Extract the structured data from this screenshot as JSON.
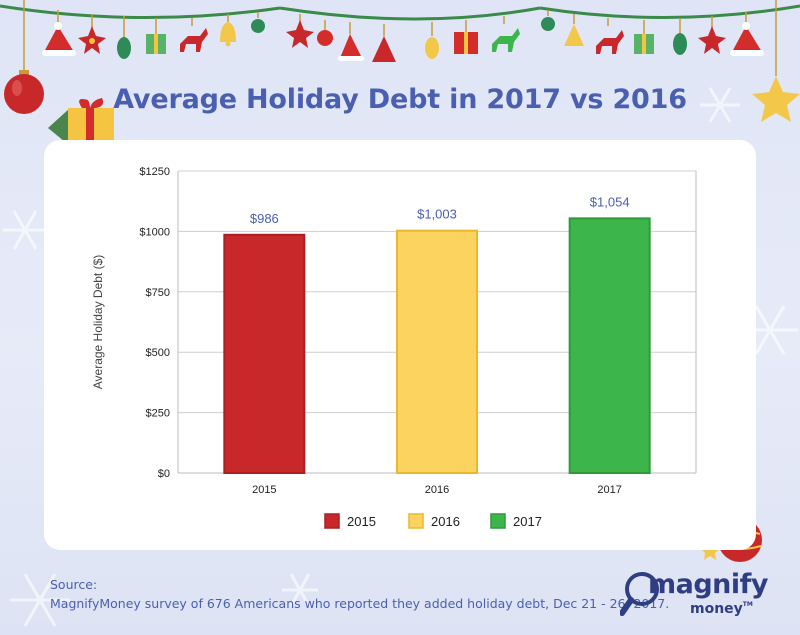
{
  "title": "Average Holiday Debt in 2017 vs 2016",
  "source_label": "Source:",
  "source_text": "MagnifyMoney survey of 676 Americans who reported they added holiday debt, Dec 21 - 26, 2017.",
  "logo": {
    "word": "magnify",
    "sub": "money",
    "tm": "TM"
  },
  "decoration_icons": [
    "santa-hat-icon",
    "poinsettia-icon",
    "pinecone-icon",
    "gift-icon",
    "reindeer-icon",
    "bell-icon",
    "ornament-icon",
    "tree-icon",
    "star-icon",
    "snowflake-icon"
  ],
  "colors": {
    "title": "#4a5fb0",
    "label": "#4a5fb0",
    "bar_2015": "#c8282a",
    "bar_2016": "#fdd35f",
    "bar_2017": "#3cb54a"
  },
  "chart_data": {
    "type": "bar",
    "title": "Average Holiday Debt in 2017 vs 2016",
    "categories": [
      "2015",
      "2016",
      "2017"
    ],
    "values": [
      986,
      1003,
      1054
    ],
    "data_labels": [
      "$986",
      "$1,003",
      "$1,054"
    ],
    "colors": [
      "#c8282a",
      "#fdd35f",
      "#3cb54a"
    ],
    "xlabel": "",
    "ylabel": "Average Holiday Debt ($)",
    "ylim": [
      0,
      1250
    ],
    "yticks": [
      0,
      250,
      500,
      750,
      1000,
      1250
    ],
    "ytick_labels": [
      "$0",
      "$250",
      "$500",
      "$750",
      "$1000",
      "$1250"
    ],
    "legend": [
      "2015",
      "2016",
      "2017"
    ],
    "legend_position": "bottom",
    "grid": true
  }
}
